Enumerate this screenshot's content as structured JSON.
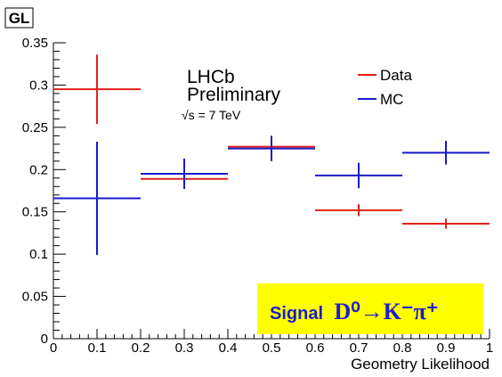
{
  "chart_data": {
    "type": "scatter",
    "title": "GL",
    "xlabel": "Geometry Likelihood",
    "ylabel": "",
    "xlim": [
      0,
      1
    ],
    "ylim": [
      0,
      0.35
    ],
    "x_ticks": [
      "0",
      "0.1",
      "0.2",
      "0.3",
      "0.4",
      "0.5",
      "0.6",
      "0.7",
      "0.8",
      "0.9",
      "1"
    ],
    "y_ticks": [
      "0",
      "0.05",
      "0.1",
      "0.15",
      "0.2",
      "0.25",
      "0.3",
      "0.35"
    ],
    "grid": false,
    "legend_position": "top-right",
    "annotations": {
      "experiment_line1": "LHCb",
      "experiment_line2": "Preliminary",
      "energy": "√s = 7 TeV",
      "signal_prefix": "Signal",
      "signal_decay": "D⁰→K⁻π⁺"
    },
    "series": [
      {
        "name": "Data",
        "color": "#e0201b",
        "points": [
          {
            "x": 0.1,
            "xerr": 0.1,
            "y": 0.295,
            "yerr": 0.041
          },
          {
            "x": 0.3,
            "xerr": 0.1,
            "y": 0.189,
            "yerr": 0.01
          },
          {
            "x": 0.5,
            "xerr": 0.1,
            "y": 0.227,
            "yerr": 0.01
          },
          {
            "x": 0.7,
            "xerr": 0.1,
            "y": 0.152,
            "yerr": 0.007
          },
          {
            "x": 0.9,
            "xerr": 0.1,
            "y": 0.136,
            "yerr": 0.006
          }
        ]
      },
      {
        "name": "MC",
        "color": "#1a1acc",
        "points": [
          {
            "x": 0.1,
            "xerr": 0.1,
            "y": 0.166,
            "yerr": 0.067
          },
          {
            "x": 0.3,
            "xerr": 0.1,
            "y": 0.195,
            "yerr": 0.018
          },
          {
            "x": 0.5,
            "xerr": 0.1,
            "y": 0.225,
            "yerr": 0.015
          },
          {
            "x": 0.7,
            "xerr": 0.1,
            "y": 0.193,
            "yerr": 0.015
          },
          {
            "x": 0.9,
            "xerr": 0.1,
            "y": 0.22,
            "yerr": 0.014
          }
        ]
      }
    ]
  },
  "colors": {
    "signal_box_bg": "#ffff00",
    "signal_text": "#1d1dcc"
  }
}
